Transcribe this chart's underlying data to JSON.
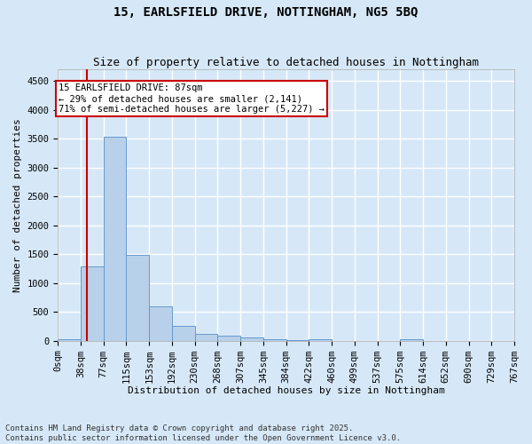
{
  "title_line1": "15, EARLSFIELD DRIVE, NOTTINGHAM, NG5 5BQ",
  "title_line2": "Size of property relative to detached houses in Nottingham",
  "xlabel": "Distribution of detached houses by size in Nottingham",
  "ylabel": "Number of detached properties",
  "bar_heights": [
    30,
    1290,
    3540,
    1490,
    590,
    250,
    120,
    90,
    55,
    30,
    10,
    25,
    0,
    0,
    0,
    25,
    0,
    0,
    0,
    0
  ],
  "bar_color": "#b8d0ea",
  "bar_edge_color": "#6699cc",
  "bg_color": "#d6e8f7",
  "grid_color": "#ffffff",
  "vline_index": 1.28,
  "vline_color": "#cc0000",
  "annotation_text": "15 EARLSFIELD DRIVE: 87sqm\n← 29% of detached houses are smaller (2,141)\n71% of semi-detached houses are larger (5,227) →",
  "annotation_box_color": "#ffffff",
  "annotation_box_edge": "#cc0000",
  "ylim": [
    0,
    4700
  ],
  "yticks": [
    0,
    500,
    1000,
    1500,
    2000,
    2500,
    3000,
    3500,
    4000,
    4500
  ],
  "xtick_labels": [
    "0sqm",
    "38sqm",
    "77sqm",
    "115sqm",
    "153sqm",
    "192sqm",
    "230sqm",
    "268sqm",
    "307sqm",
    "345sqm",
    "384sqm",
    "422sqm",
    "460sqm",
    "499sqm",
    "537sqm",
    "575sqm",
    "614sqm",
    "652sqm",
    "690sqm",
    "729sqm",
    "767sqm"
  ],
  "footnote": "Contains HM Land Registry data © Crown copyright and database right 2025.\nContains public sector information licensed under the Open Government Licence v3.0.",
  "title_fontsize": 10,
  "subtitle_fontsize": 9,
  "axis_label_fontsize": 8,
  "tick_fontsize": 7.5,
  "footnote_fontsize": 6.5
}
